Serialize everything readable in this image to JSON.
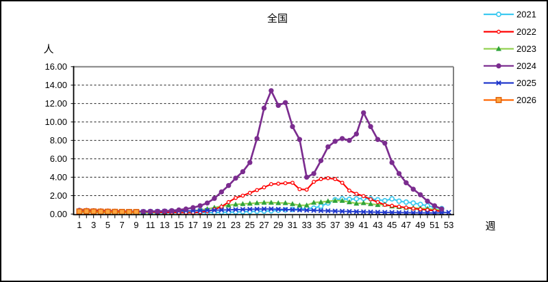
{
  "title": "全国",
  "y_axis": {
    "unit_label": "人",
    "tick_labels": [
      "0.00",
      "2.00",
      "4.00",
      "6.00",
      "8.00",
      "10.00",
      "12.00",
      "14.00",
      "16.00"
    ]
  },
  "x_axis": {
    "unit_label": "週",
    "tick_labels": [
      "1",
      "3",
      "5",
      "7",
      "9",
      "11",
      "13",
      "15",
      "17",
      "19",
      "21",
      "23",
      "25",
      "27",
      "29",
      "31",
      "33",
      "35",
      "37",
      "39",
      "41",
      "43",
      "45",
      "47",
      "49",
      "51",
      "53"
    ]
  },
  "colors": {
    "grid": "#1a1a1a",
    "axis": "#000000",
    "plot_border": "#808080",
    "outer_border": "#000000"
  },
  "chart_data": {
    "type": "line",
    "title": "全国",
    "xlabel": "週",
    "ylabel": "人",
    "xlim": [
      1,
      53
    ],
    "ylim": [
      0,
      16
    ],
    "y_tick_step": 2,
    "grid": "horizontal-dashed",
    "legend_position": "top-right",
    "x": [
      1,
      2,
      3,
      4,
      5,
      6,
      7,
      8,
      9,
      10,
      11,
      12,
      13,
      14,
      15,
      16,
      17,
      18,
      19,
      20,
      21,
      22,
      23,
      24,
      25,
      26,
      27,
      28,
      29,
      30,
      31,
      32,
      33,
      34,
      35,
      36,
      37,
      38,
      39,
      40,
      41,
      42,
      43,
      44,
      45,
      46,
      47,
      48,
      49,
      50,
      51,
      52,
      53
    ],
    "series": [
      {
        "name": "2021",
        "color": "#3CC9F0",
        "marker": "circle-open",
        "values": [
          0.25,
          0.22,
          0.2,
          0.18,
          0.18,
          0.17,
          0.16,
          0.15,
          0.15,
          0.15,
          0.15,
          0.14,
          0.14,
          0.15,
          0.15,
          0.15,
          0.15,
          0.16,
          0.17,
          0.18,
          0.2,
          0.2,
          0.22,
          0.25,
          0.28,
          0.3,
          0.32,
          0.35,
          0.4,
          0.45,
          0.5,
          0.55,
          0.6,
          0.65,
          0.85,
          1.2,
          1.55,
          1.65,
          1.6,
          1.65,
          1.7,
          1.65,
          1.55,
          1.45,
          1.65,
          1.4,
          1.3,
          1.2,
          1.05,
          0.9,
          0.75,
          0.6,
          null
        ]
      },
      {
        "name": "2022",
        "color": "#FF0000",
        "marker": "circle-open-small",
        "values": [
          0.45,
          0.45,
          0.42,
          0.4,
          0.38,
          0.35,
          0.33,
          0.3,
          0.28,
          0.25,
          0.22,
          0.2,
          0.18,
          0.17,
          0.16,
          0.15,
          0.15,
          0.2,
          0.3,
          0.5,
          0.8,
          1.3,
          1.75,
          2.0,
          2.3,
          2.6,
          2.9,
          3.25,
          3.3,
          3.35,
          3.4,
          2.7,
          2.65,
          3.5,
          3.8,
          3.9,
          3.8,
          3.4,
          2.55,
          2.2,
          1.95,
          1.6,
          1.3,
          1.0,
          0.9,
          0.8,
          0.7,
          0.6,
          0.52,
          0.45,
          0.38,
          0.3,
          null
        ]
      },
      {
        "name": "2023",
        "color": "#92D050",
        "marker": "triangle",
        "marker_color": "#2FA33C",
        "values": [
          0.2,
          0.2,
          0.18,
          0.17,
          0.16,
          0.15,
          0.15,
          0.15,
          0.15,
          0.15,
          0.15,
          0.16,
          0.18,
          0.2,
          0.25,
          0.3,
          0.35,
          0.45,
          0.55,
          0.7,
          0.85,
          0.95,
          1.05,
          1.1,
          1.15,
          1.2,
          1.25,
          1.25,
          1.2,
          1.2,
          1.1,
          0.95,
          0.95,
          1.25,
          1.3,
          1.4,
          1.45,
          1.45,
          1.3,
          1.15,
          1.2,
          1.1,
          1.0,
          1.05,
          0.85,
          0.78,
          0.7,
          0.67,
          0.62,
          0.58,
          0.48,
          0.44,
          null
        ]
      },
      {
        "name": "2024",
        "color": "#7B2C8F",
        "marker": "circle-filled",
        "values": [
          0.4,
          0.38,
          0.35,
          0.32,
          0.3,
          0.3,
          0.28,
          0.28,
          0.28,
          0.28,
          0.3,
          0.3,
          0.33,
          0.37,
          0.45,
          0.55,
          0.7,
          0.9,
          1.2,
          1.7,
          2.4,
          3.1,
          3.9,
          4.6,
          5.6,
          8.2,
          11.5,
          13.4,
          11.8,
          12.1,
          9.5,
          8.1,
          4.0,
          4.4,
          5.8,
          7.3,
          7.9,
          8.2,
          8.0,
          8.7,
          11.0,
          9.5,
          8.1,
          7.7,
          5.6,
          4.4,
          3.4,
          2.7,
          2.1,
          1.4,
          0.9,
          0.55,
          null
        ]
      },
      {
        "name": "2025",
        "color": "#2038CC",
        "marker": "x-cross",
        "values": [
          0.3,
          0.28,
          0.27,
          0.26,
          0.25,
          0.25,
          0.24,
          0.24,
          0.25,
          0.26,
          0.27,
          0.28,
          0.3,
          0.32,
          0.33,
          0.35,
          0.36,
          0.38,
          0.4,
          0.42,
          0.44,
          0.46,
          0.48,
          0.5,
          0.52,
          0.54,
          0.55,
          0.55,
          0.52,
          0.5,
          0.47,
          0.45,
          0.42,
          0.4,
          0.37,
          0.35,
          0.32,
          0.3,
          0.28,
          0.26,
          0.24,
          0.22,
          0.2,
          0.18,
          0.17,
          0.16,
          0.15,
          0.14,
          0.13,
          0.13,
          0.12,
          0.15,
          0.18
        ]
      },
      {
        "name": "2026",
        "color": "#FF6600",
        "marker": "square",
        "marker_fill": "#FFA640",
        "marker_stroke": "#E0610A",
        "values": [
          0.28,
          0.3,
          0.28,
          0.26,
          0.25,
          0.24,
          0.23,
          0.22,
          0.22,
          null,
          null,
          null,
          null,
          null,
          null,
          null,
          null,
          null,
          null,
          null,
          null,
          null,
          null,
          null,
          null,
          null,
          null,
          null,
          null,
          null,
          null,
          null,
          null,
          null,
          null,
          null,
          null,
          null,
          null,
          null,
          null,
          null,
          null,
          null,
          null,
          null,
          null,
          null,
          null,
          null,
          null,
          null,
          null
        ]
      }
    ]
  }
}
